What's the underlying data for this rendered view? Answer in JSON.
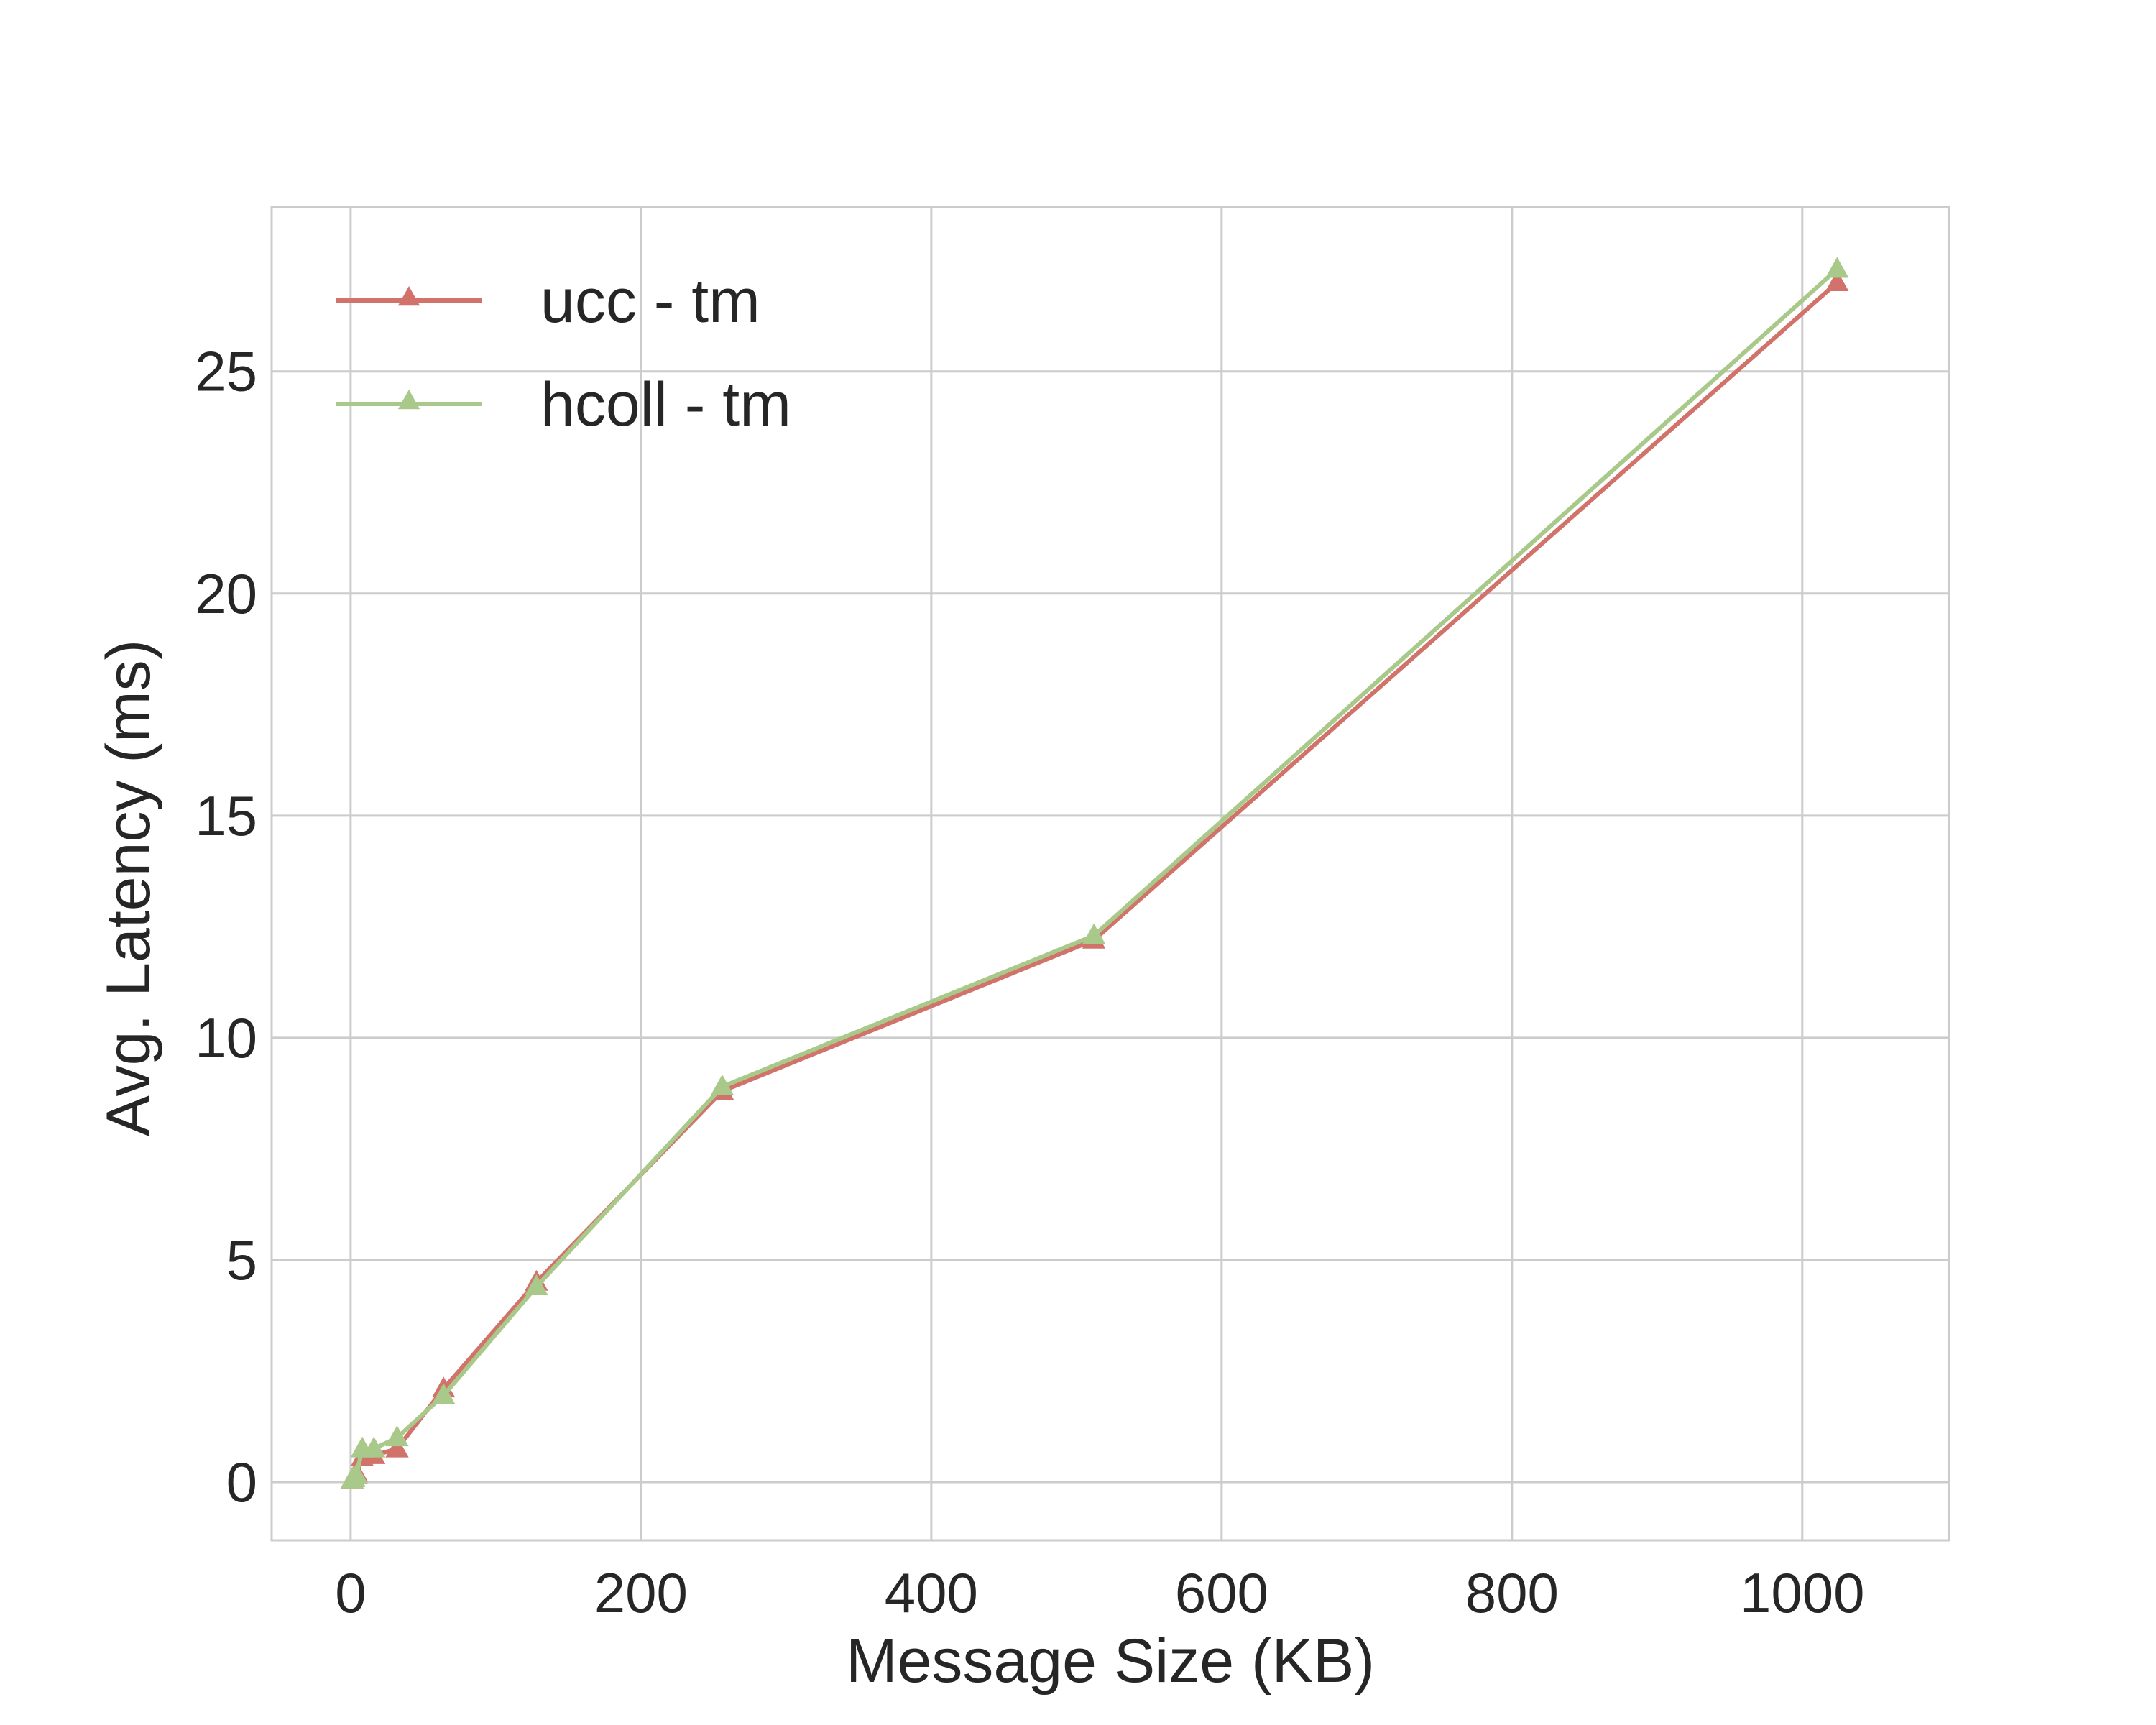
{
  "chart_data": {
    "type": "line",
    "title": "",
    "xlabel": "Message Size (KB)",
    "ylabel": "Avg. Latency (ms)",
    "xlim": [
      -54.4,
      1101.1
    ],
    "ylim": [
      -1.31,
      28.7
    ],
    "xticks": [
      0,
      200,
      400,
      600,
      800,
      1000
    ],
    "yticks": [
      0,
      5,
      10,
      15,
      20,
      25
    ],
    "xtick_labels": [
      "0",
      "200",
      "400",
      "600",
      "800",
      "1000"
    ],
    "ytick_labels": [
      "0",
      "5",
      "10",
      "15",
      "20",
      "25"
    ],
    "grid": true,
    "legend_position": "top-left",
    "series": [
      {
        "name": "ucc - tm",
        "color": "#d1736a",
        "marker": "triangle-up",
        "x": [
          1,
          2,
          4,
          8,
          16,
          32,
          64,
          128,
          256,
          512,
          1024
        ],
        "y": [
          0.05,
          0.1,
          0.2,
          0.55,
          0.6,
          0.75,
          2.1,
          4.5,
          8.8,
          12.2,
          27.0
        ]
      },
      {
        "name": "hcoll - tm",
        "color": "#a9c98b",
        "marker": "triangle-up",
        "x": [
          1,
          2,
          4,
          8,
          16,
          32,
          64,
          128,
          256,
          512,
          1024
        ],
        "y": [
          0.05,
          0.08,
          0.15,
          0.75,
          0.75,
          1.0,
          1.95,
          4.4,
          8.9,
          12.3,
          27.3
        ]
      }
    ]
  }
}
